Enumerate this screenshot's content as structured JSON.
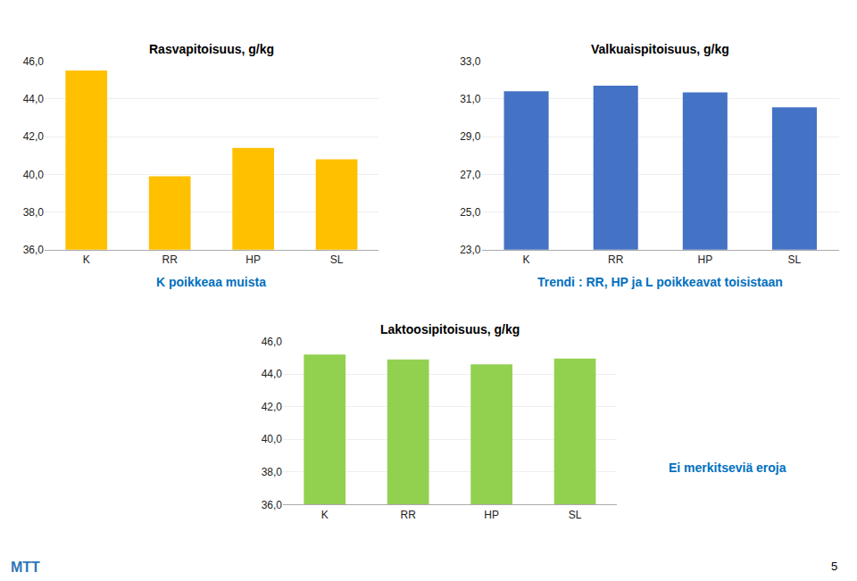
{
  "chart_data": [
    {
      "type": "bar",
      "title": "Rasvapitoisuus, g/kg",
      "subtitle": "K poikkeaa muista",
      "categories": [
        "K",
        "RR",
        "HP",
        "SL"
      ],
      "values": [
        45.5,
        39.9,
        41.4,
        40.8
      ],
      "color": "#FFC000",
      "ylim": [
        36.0,
        46.0
      ],
      "yticks": [
        {
          "value": 36.0,
          "label": "36,0"
        },
        {
          "value": 38.0,
          "label": "38,0"
        },
        {
          "value": 40.0,
          "label": "40,0"
        },
        {
          "value": 42.0,
          "label": "42,0"
        },
        {
          "value": 44.0,
          "label": "44,0"
        },
        {
          "value": 46.0,
          "label": "46,0"
        }
      ],
      "grid": true
    },
    {
      "type": "bar",
      "title": "Valkuaispitoisuus, g/kg",
      "subtitle": "Trendi : RR, HP ja L poikkeavat toisistaan",
      "categories": [
        "K",
        "RR",
        "HP",
        "SL"
      ],
      "values": [
        31.4,
        31.7,
        31.35,
        30.55
      ],
      "color": "#4472C4",
      "ylim": [
        23.0,
        33.0
      ],
      "yticks": [
        {
          "value": 23.0,
          "label": "23,0"
        },
        {
          "value": 25.0,
          "label": "25,0"
        },
        {
          "value": 27.0,
          "label": "27,0"
        },
        {
          "value": 29.0,
          "label": "29,0"
        },
        {
          "value": 31.0,
          "label": "31,0"
        },
        {
          "value": 33.0,
          "label": "33,0"
        }
      ],
      "grid": true
    },
    {
      "type": "bar",
      "title": "Laktoosipitoisuus, g/kg",
      "subtitle": "Ei merkitseviä eroja",
      "categories": [
        "K",
        "RR",
        "HP",
        "SL"
      ],
      "values": [
        45.2,
        44.9,
        44.6,
        44.95
      ],
      "color": "#92D050",
      "ylim": [
        36.0,
        46.0
      ],
      "yticks": [
        {
          "value": 36.0,
          "label": "36,0"
        },
        {
          "value": 38.0,
          "label": "38,0"
        },
        {
          "value": 40.0,
          "label": "40,0"
        },
        {
          "value": 42.0,
          "label": "42,0"
        },
        {
          "value": 44.0,
          "label": "44,0"
        },
        {
          "value": 46.0,
          "label": "46,0"
        }
      ],
      "grid": true
    }
  ],
  "annotations": [
    "MTT",
    "5"
  ]
}
